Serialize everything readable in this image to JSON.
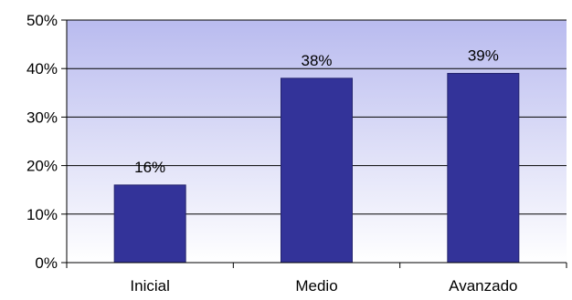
{
  "chart_data": {
    "type": "bar",
    "categories": [
      "Inicial",
      "Medio",
      "Avanzado"
    ],
    "values": [
      16,
      38,
      39
    ],
    "data_labels": [
      "16%",
      "38%",
      "39%"
    ],
    "yticks": [
      0,
      10,
      20,
      30,
      40,
      50
    ],
    "ytick_labels": [
      "0%",
      "10%",
      "20%",
      "30%",
      "40%",
      "50%"
    ],
    "ylim": [
      0,
      50
    ],
    "title": "",
    "xlabel": "",
    "ylabel": "",
    "grid": true,
    "legend": "none",
    "colors": {
      "bar": "#333399",
      "bar_edge": "#24246e",
      "plot_top": "#b9bbef",
      "plot_bottom": "#ffffff",
      "grid": "#000000",
      "axis": "#000000"
    }
  }
}
